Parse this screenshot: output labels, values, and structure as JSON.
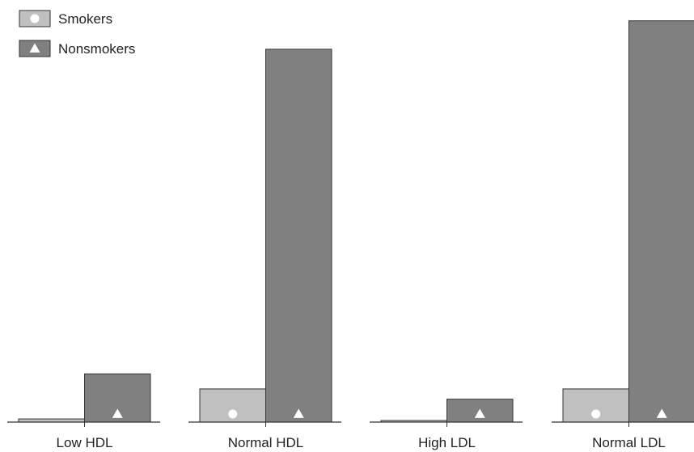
{
  "chart_data": {
    "type": "bar",
    "categories": [
      "Low HDL",
      "Normal HDL",
      "High LDL",
      "Normal LDL"
    ],
    "series": [
      {
        "name": "Smokers",
        "marker": "circle",
        "color": "#c0c0c0",
        "values": [
          4,
          42,
          2,
          42
        ]
      },
      {
        "name": "Nonsmokers",
        "marker": "triangle",
        "color": "#808080",
        "values": [
          61,
          472,
          29,
          508
        ]
      }
    ],
    "ylim": [
      0,
      520
    ],
    "grid": false,
    "legend_position": "top-left"
  }
}
